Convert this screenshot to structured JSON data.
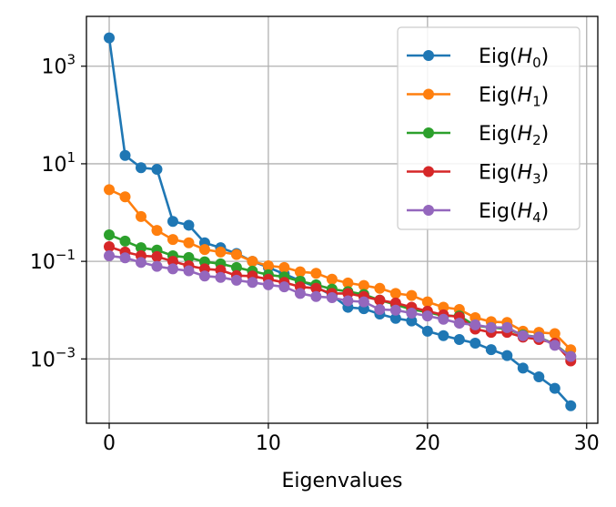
{
  "chart_data": {
    "type": "line",
    "title": "",
    "xlabel": "Eigenvalues",
    "ylabel": "",
    "yscale": "log",
    "xlim": [
      -1.43,
      30.7
    ],
    "ylim": [
      4.8e-05,
      10500
    ],
    "grid": true,
    "legend_position": "top-right",
    "x_ticks": [
      0,
      10,
      20,
      30
    ],
    "x_tick_labels": [
      "0",
      "10",
      "20",
      "30"
    ],
    "y_ticks": [
      0.001,
      0.1,
      10,
      1000
    ],
    "y_tick_labels": [
      {
        "base": "10",
        "exp": "−3"
      },
      {
        "base": "10",
        "exp": "−1"
      },
      {
        "base": "10",
        "exp": "1"
      },
      {
        "base": "10",
        "exp": "3"
      }
    ],
    "x": [
      0,
      1,
      2,
      3,
      4,
      5,
      6,
      7,
      8,
      9,
      10,
      11,
      12,
      13,
      14,
      15,
      16,
      17,
      18,
      19,
      20,
      21,
      22,
      23,
      24,
      25,
      26,
      27,
      28,
      29
    ],
    "series": [
      {
        "name": "Eig(H_0)",
        "label_main": "Eig(",
        "label_var": "H",
        "label_sub": "0",
        "label_end": ")",
        "color": "#1f77b4",
        "values": [
          3800,
          14.8,
          8.3,
          7.7,
          0.66,
          0.55,
          0.24,
          0.19,
          0.145,
          0.1,
          0.075,
          0.055,
          0.04,
          0.03,
          0.02,
          0.0114,
          0.0107,
          0.0083,
          0.0068,
          0.006,
          0.0037,
          0.003,
          0.0025,
          0.0021,
          0.00155,
          0.00117,
          0.00065,
          0.00043,
          0.00025,
          0.00011
        ]
      },
      {
        "name": "Eig(H_1)",
        "label_main": "Eig(",
        "label_var": "H",
        "label_sub": "1",
        "label_end": ")",
        "color": "#ff7f0e",
        "values": [
          2.95,
          2.1,
          0.83,
          0.43,
          0.28,
          0.24,
          0.175,
          0.155,
          0.138,
          0.1,
          0.081,
          0.075,
          0.061,
          0.057,
          0.043,
          0.036,
          0.032,
          0.028,
          0.022,
          0.02,
          0.0148,
          0.0115,
          0.0103,
          0.007,
          0.0058,
          0.0056,
          0.0037,
          0.0035,
          0.0033,
          0.00154
        ]
      },
      {
        "name": "Eig(H_2)",
        "label_main": "Eig(",
        "label_var": "H",
        "label_sub": "2",
        "label_end": ")",
        "color": "#2ca02c",
        "values": [
          0.35,
          0.26,
          0.19,
          0.17,
          0.13,
          0.12,
          0.098,
          0.089,
          0.075,
          0.063,
          0.053,
          0.048,
          0.039,
          0.033,
          0.027,
          0.024,
          0.021,
          0.016,
          0.013,
          0.0103,
          0.0091,
          0.0076,
          0.0076,
          0.0048,
          0.0044,
          0.0041,
          0.0031,
          0.0028,
          0.002,
          0.00112
        ]
      },
      {
        "name": "Eig(H_3)",
        "label_main": "Eig(",
        "label_var": "H",
        "label_sub": "3",
        "label_end": ")",
        "color": "#d62728",
        "values": [
          0.2,
          0.155,
          0.13,
          0.125,
          0.1,
          0.081,
          0.07,
          0.066,
          0.051,
          0.05,
          0.043,
          0.037,
          0.03,
          0.028,
          0.022,
          0.022,
          0.019,
          0.016,
          0.014,
          0.0115,
          0.0095,
          0.008,
          0.0072,
          0.0041,
          0.0035,
          0.0035,
          0.0028,
          0.0025,
          0.0021,
          0.00091
        ]
      },
      {
        "name": "Eig(H_4)",
        "label_main": "Eig(",
        "label_var": "H",
        "label_sub": "4",
        "label_end": ")",
        "color": "#9467bd",
        "values": [
          0.13,
          0.118,
          0.095,
          0.079,
          0.07,
          0.064,
          0.05,
          0.047,
          0.041,
          0.037,
          0.033,
          0.03,
          0.022,
          0.019,
          0.018,
          0.0155,
          0.0148,
          0.0103,
          0.01,
          0.0087,
          0.0076,
          0.0065,
          0.0054,
          0.005,
          0.0044,
          0.0044,
          0.003,
          0.0028,
          0.0019,
          0.00112
        ]
      }
    ]
  }
}
